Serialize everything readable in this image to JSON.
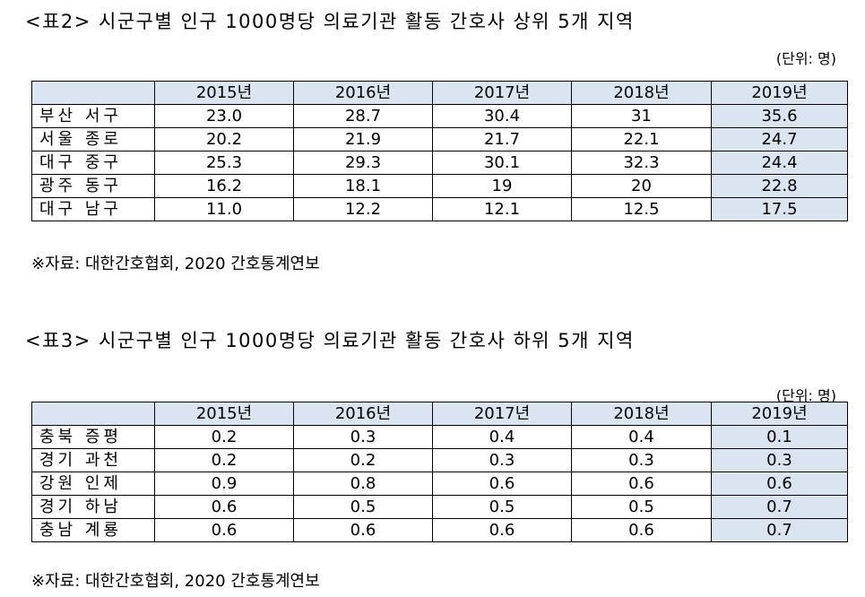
{
  "tables": [
    {
      "title": "<표2> 시군구별 인구 1000명당 의료기관 활동 간호사 상위 5개 지역",
      "unit": "(단위: 명)",
      "columns": [
        "2015년",
        "2016년",
        "2017년",
        "2018년",
        "2019년"
      ],
      "rows": [
        {
          "label": "부산 서구",
          "values": [
            "23.0",
            "28.7",
            "30.4",
            "31",
            "35.6"
          ]
        },
        {
          "label": "서울 종로",
          "values": [
            "20.2",
            "21.9",
            "21.7",
            "22.1",
            "24.7"
          ]
        },
        {
          "label": "대구 중구",
          "values": [
            "25.3",
            "29.3",
            "30.1",
            "32.3",
            "24.4"
          ]
        },
        {
          "label": "광주 동구",
          "values": [
            "16.2",
            "18.1",
            "19",
            "20",
            "22.8"
          ]
        },
        {
          "label": "대구 남구",
          "values": [
            "11.0",
            "12.2",
            "12.1",
            "12.5",
            "17.5"
          ]
        }
      ],
      "source": "※자료: 대한간호협회, 2020 간호통계연보"
    },
    {
      "title": "<표3> 시군구별 인구 1000명당 의료기관 활동 간호사 하위 5개 지역",
      "unit": "(단위: 명)",
      "columns": [
        "2015년",
        "2016년",
        "2017년",
        "2018년",
        "2019년"
      ],
      "rows": [
        {
          "label": "충북 증평",
          "values": [
            "0.2",
            "0.3",
            "0.4",
            "0.4",
            "0.1"
          ]
        },
        {
          "label": "경기 과천",
          "values": [
            "0.2",
            "0.2",
            "0.3",
            "0.3",
            "0.3"
          ]
        },
        {
          "label": "강원 인제",
          "values": [
            "0.9",
            "0.8",
            "0.6",
            "0.6",
            "0.6"
          ]
        },
        {
          "label": "경기 하남",
          "values": [
            "0.6",
            "0.5",
            "0.5",
            "0.5",
            "0.7"
          ]
        },
        {
          "label": "충남 계룡",
          "values": [
            "0.6",
            "0.6",
            "0.6",
            "0.6",
            "0.7"
          ]
        }
      ],
      "source": "※자료: 대한간호협회, 2020 간호통계연보"
    }
  ]
}
